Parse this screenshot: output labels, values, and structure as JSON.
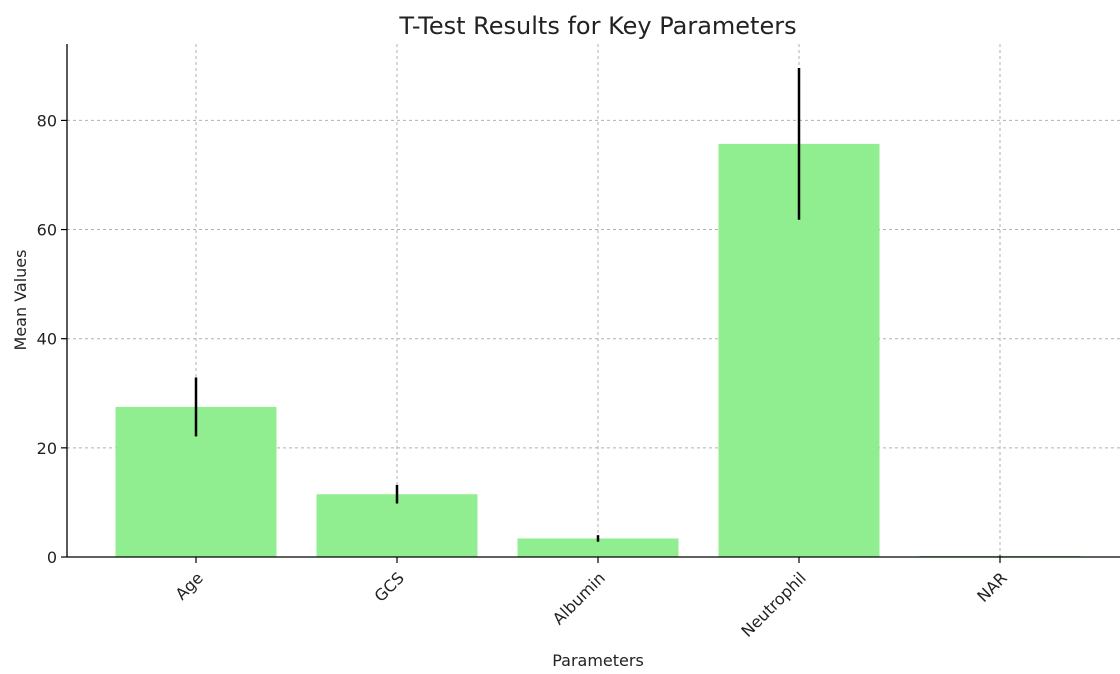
{
  "chart_data": {
    "type": "bar",
    "title": "T-Test Results for Key Parameters",
    "xlabel": "Parameters",
    "ylabel": "Mean Values",
    "categories": [
      "Age",
      "GCS",
      "Albumin",
      "Neutrophil",
      "NAR"
    ],
    "values": [
      27.5,
      11.5,
      3.4,
      75.7,
      0.2
    ],
    "errors": [
      5.4,
      1.7,
      0.6,
      13.9,
      0.05
    ],
    "ylim": [
      0,
      94
    ],
    "yticks": [
      0,
      20,
      40,
      60,
      80
    ],
    "grid": true,
    "bar_color": "#90ee90",
    "error_color": "#000000",
    "grid_color": "#b0b0b0",
    "axis_color": "#000000"
  }
}
